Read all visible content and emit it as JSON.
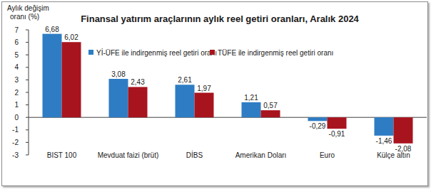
{
  "chart_data": {
    "type": "bar",
    "title": "Finansal yatırım araçlarının aylık reel getiri oranları, Aralık 2024",
    "y_label": "Aylık değişim oranı (%)",
    "categories": [
      "BIST 100",
      "Mevduat faizi (brüt)",
      "DİBS",
      "Amerikan Doları",
      "Euro",
      "Külçe altın"
    ],
    "series": [
      {
        "name": "Yİ-ÜFE ile indirgenmiş reel getiri oranı",
        "color": "#2e7dc4",
        "values": [
          6.68,
          3.08,
          2.61,
          1.21,
          -0.29,
          -1.46
        ],
        "value_labels": [
          "6,68",
          "3,08",
          "2,61",
          "1,21",
          "-0,29",
          "-1,46"
        ]
      },
      {
        "name": "TÜFE ile indirgenmiş reel getiri oranı",
        "color": "#a8141e",
        "values": [
          6.02,
          2.43,
          1.97,
          0.57,
          -0.91,
          -2.08
        ],
        "value_labels": [
          "6,02",
          "2,43",
          "1,97",
          "0,57",
          "-0,91",
          "-2,08"
        ]
      }
    ],
    "ylim": [
      -3,
      7
    ],
    "yticks": [
      -3,
      -2,
      -1,
      0,
      1,
      2,
      3,
      4,
      5,
      6,
      7
    ],
    "grid": false,
    "legend": "top",
    "data_labels": true
  }
}
